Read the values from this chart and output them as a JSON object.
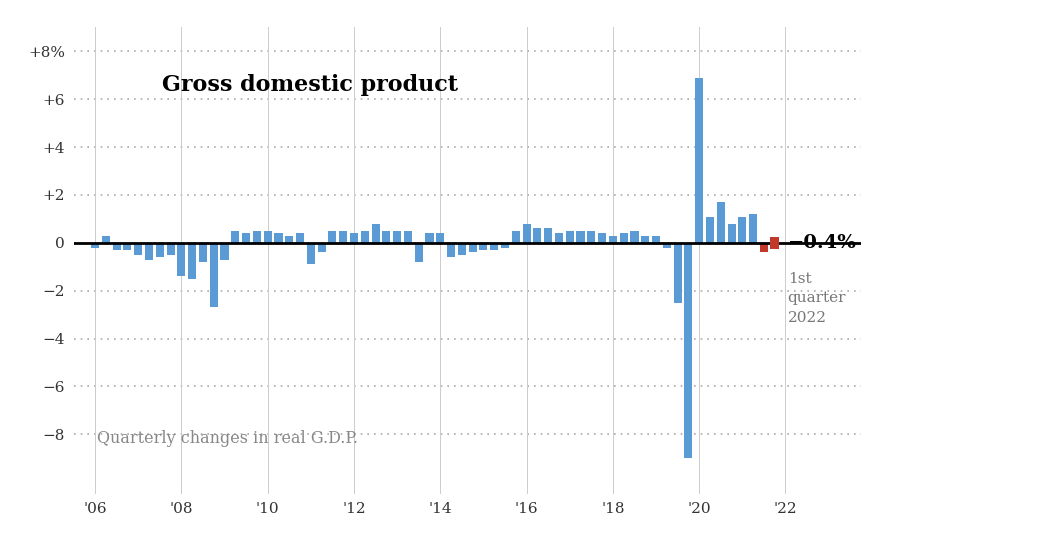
{
  "title": "Gross domestic product",
  "subtitle": "Quarterly changes in real G.D.P.",
  "bar_color": "#5b9bd5",
  "last_bar_color": "#c0392b",
  "annotation_value": "−0.4%",
  "annotation_label": "1st\nquarter\n2022",
  "ylim": [
    -10.5,
    9.0
  ],
  "yticks": [
    -8,
    -6,
    -4,
    -2,
    0,
    2,
    4,
    6,
    8
  ],
  "ytick_labels": [
    "−8",
    "−6",
    "−4",
    "−2",
    "0",
    "+2",
    "+4",
    "+6",
    "+8%"
  ],
  "xtick_labels": [
    "'06",
    "'08",
    "'10",
    "'12",
    "'14",
    "'16",
    "'18",
    "'20",
    "'22"
  ],
  "values": [
    -0.2,
    0.3,
    -0.3,
    -0.3,
    -0.5,
    -0.7,
    -0.6,
    -0.5,
    -1.4,
    -1.5,
    -0.8,
    -2.7,
    -0.7,
    0.5,
    0.4,
    0.5,
    0.5,
    0.4,
    0.3,
    0.4,
    -0.9,
    -0.4,
    0.5,
    0.5,
    0.4,
    0.5,
    0.8,
    0.5,
    0.5,
    0.5,
    -0.8,
    0.4,
    0.4,
    -0.6,
    -0.5,
    -0.4,
    -0.3,
    -0.3,
    -0.2,
    0.5,
    0.8,
    0.6,
    0.6,
    0.4,
    0.5,
    0.5,
    0.5,
    0.4,
    0.3,
    0.4,
    0.5,
    0.3,
    0.3,
    -0.2,
    -2.5,
    -9.0,
    6.9,
    1.1,
    1.7,
    0.8,
    1.1,
    1.2,
    -0.4
  ],
  "background_color": "#ffffff",
  "grid_color": "#aaaaaa",
  "spine_color": "#cccccc"
}
